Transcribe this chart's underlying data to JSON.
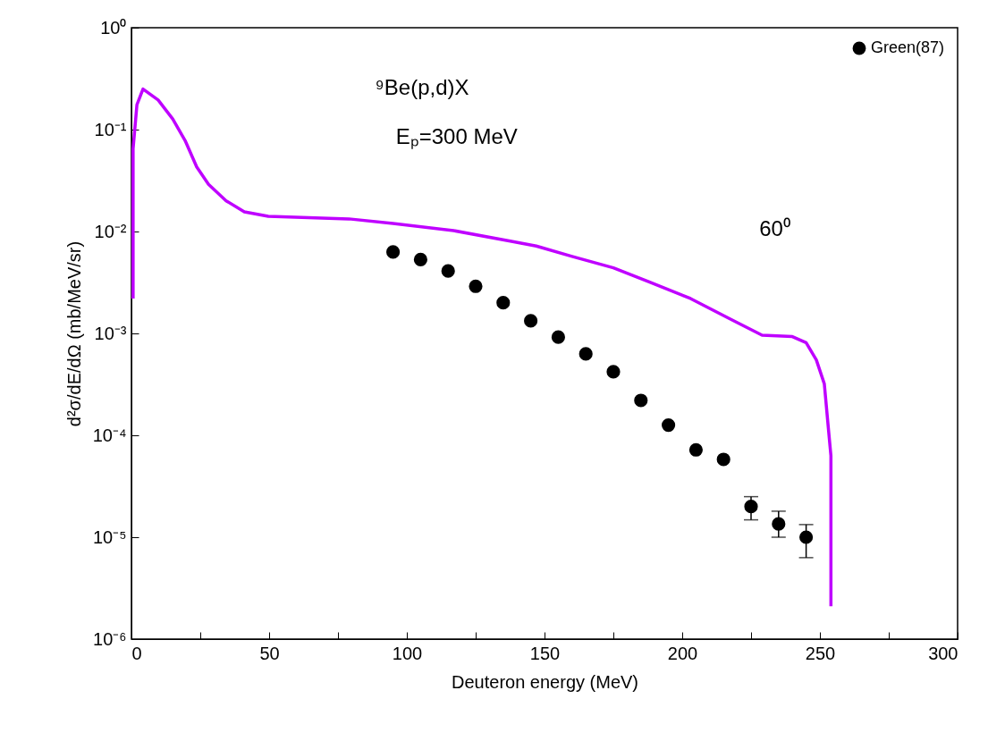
{
  "chart_data": {
    "type": "scatter",
    "xlabel": "Deuteron energy (MeV)",
    "ylabel": "d²σ/dE/dΩ (mb/MeV/sr)",
    "annotations": [
      "⁹Be(p,d)X",
      "Eₚ=300 MeV",
      "60⁰"
    ],
    "xlim": [
      0,
      300
    ],
    "xticks": [
      0,
      {
        "value": 25,
        "label": null
      },
      50,
      {
        "value": 75,
        "label": null
      },
      100,
      {
        "value": 125,
        "label": null
      },
      150,
      {
        "value": 175,
        "label": null
      },
      200,
      {
        "value": 225,
        "label": null
      },
      250,
      {
        "value": 275,
        "label": null
      },
      300
    ],
    "ylim": [
      1e-06,
      1
    ],
    "yticks": [
      {
        "value": 1,
        "label": "10⁰"
      },
      {
        "value": 0.1,
        "label": "10⁻¹"
      },
      {
        "value": 0.01,
        "label": "10⁻²"
      },
      {
        "value": 0.001,
        "label": "10⁻³"
      },
      {
        "value": 0.0001,
        "label": "10⁻⁴"
      },
      {
        "value": 1e-05,
        "label": "10⁻⁵"
      },
      {
        "value": 1e-06,
        "label": "10⁻⁶"
      }
    ],
    "log": true,
    "grid": false,
    "legend": "top right",
    "series": [
      {
        "name": "Green(87)",
        "marker": "circle",
        "color": "#000000",
        "x": [
          95,
          105,
          115,
          125,
          135,
          145,
          155,
          165,
          175,
          185,
          195,
          205,
          215,
          225,
          235,
          245
        ],
        "values": [
          0.0063,
          0.0053,
          0.0041,
          0.0029,
          0.002,
          0.00133,
          0.00092,
          0.00063,
          0.00042,
          0.00022,
          0.000126,
          7.2e-05,
          5.8e-05,
          2e-05,
          1.35e-05,
          1e-05
        ],
        "errors": [
          null,
          null,
          null,
          null,
          null,
          null,
          null,
          null,
          null,
          null,
          null,
          null,
          null,
          [
            1.48e-05,
            2.5e-05
          ],
          [
            1e-05,
            1.8e-05
          ],
          [
            6.3e-06,
            1.33e-05
          ]
        ]
      },
      {
        "type": "line",
        "color": "#bf00ff",
        "x": [
          0.6,
          0.6,
          2,
          4.2,
          9.7,
          15,
          19.5,
          23.7,
          28,
          34.4,
          41,
          49.7,
          79,
          95,
          117,
          138,
          147,
          160,
          175,
          188,
          203,
          217.5,
          229,
          240,
          245,
          248.7,
          251.6,
          253,
          254,
          254
        ],
        "values": [
          0.0022,
          0.065,
          0.176,
          0.25,
          0.195,
          0.127,
          0.078,
          0.043,
          0.029,
          0.02,
          0.0156,
          0.0141,
          0.0133,
          0.012,
          0.0102,
          0.008,
          0.0072,
          0.0057,
          0.0044,
          0.0032,
          0.0022,
          0.00138,
          0.00096,
          0.00093,
          0.00081,
          0.00055,
          0.00032,
          0.000123,
          6.3e-05,
          2.1e-06
        ]
      }
    ]
  }
}
